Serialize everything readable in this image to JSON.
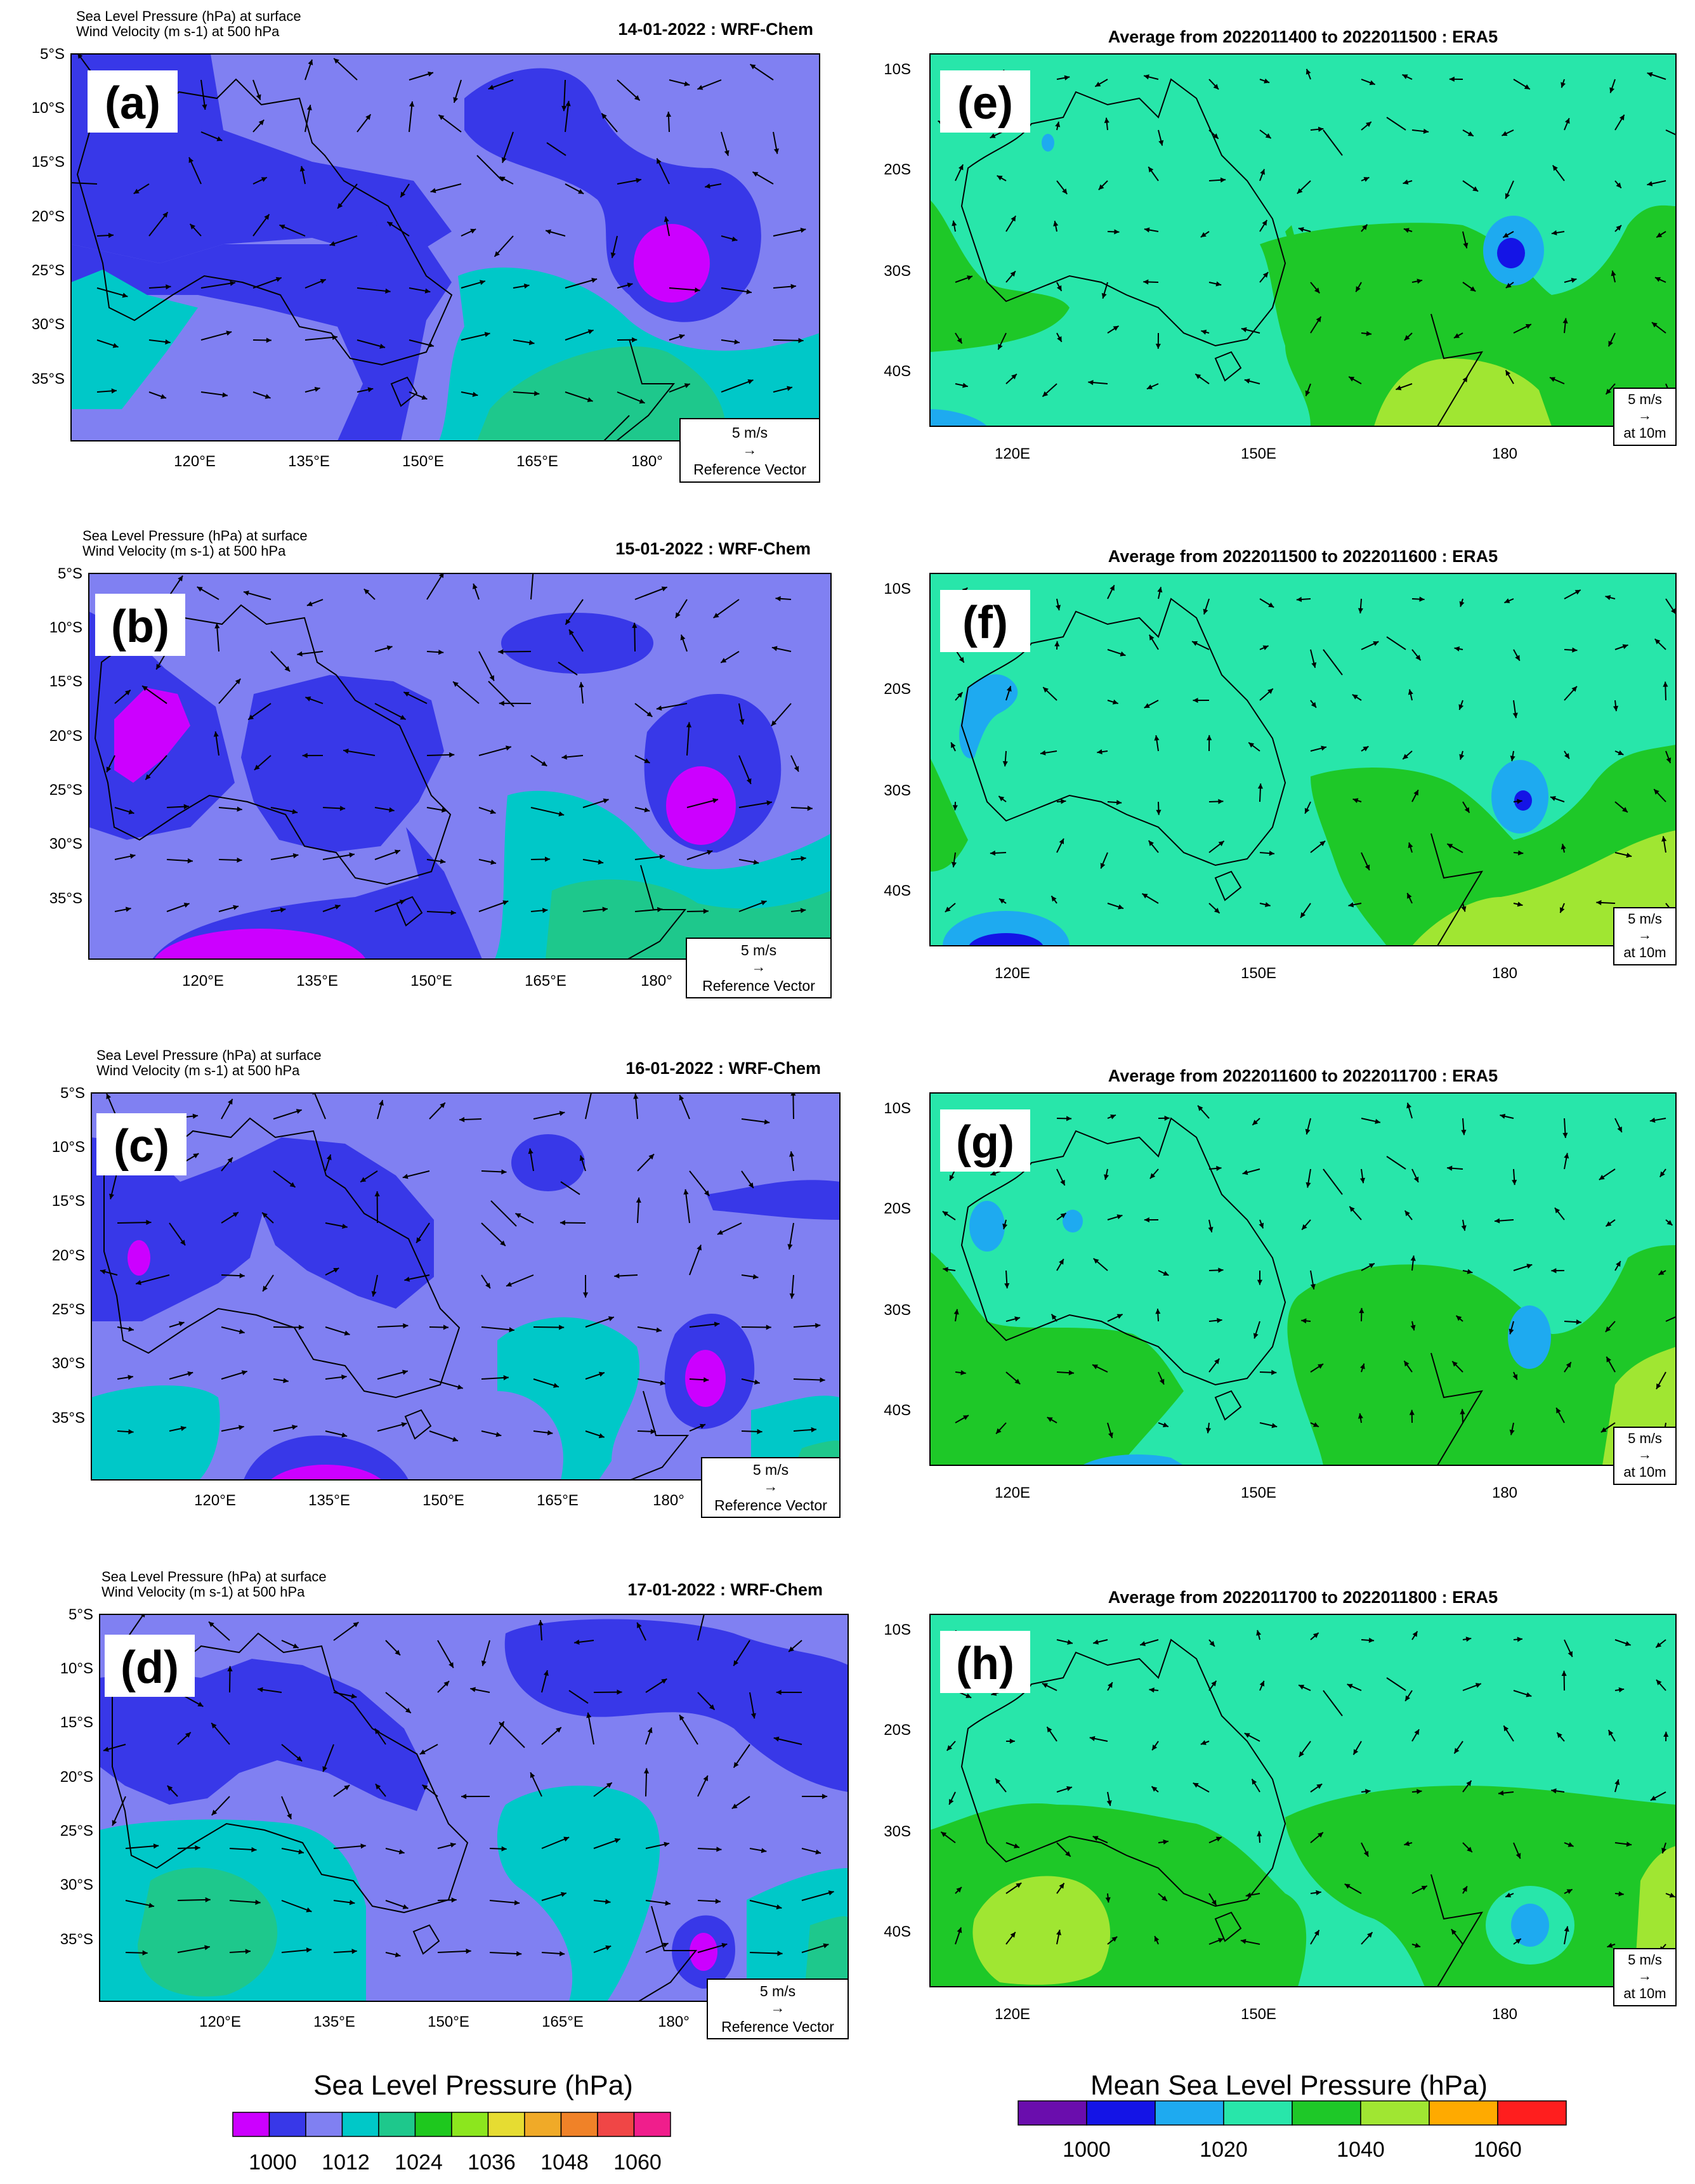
{
  "wrf_panels": [
    {
      "letter": "(a)",
      "header_line1": "Sea Level Pressure   (hPa)      at   surface",
      "header_line2": "Wind Velocity   (m s-1)      at   500 hPa",
      "date_title": "14-01-2022 : WRF-Chem"
    },
    {
      "letter": "(b)",
      "header_line1": "Sea Level Pressure   (hPa)      at   surface",
      "header_line2": "Wind Velocity   (m s-1)      at   500 hPa",
      "date_title": "15-01-2022 : WRF-Chem"
    },
    {
      "letter": "(c)",
      "header_line1": "Sea Level Pressure   (hPa)      at   surface",
      "header_line2": "Wind Velocity   (m s-1)      at   500 hPa",
      "date_title": "16-01-2022 : WRF-Chem"
    },
    {
      "letter": "(d)",
      "header_line1": "Sea Level Pressure   (hPa)      at   surface",
      "header_line2": "Wind Velocity   (m s-1)      at   500 hPa",
      "date_title": "17-01-2022 : WRF-Chem"
    }
  ],
  "era_panels": [
    {
      "letter": "(e)",
      "title": "Average from 2022011400 to 2022011500 : ERA5"
    },
    {
      "letter": "(f)",
      "title": "Average from 2022011500 to 2022011600 : ERA5"
    },
    {
      "letter": "(g)",
      "title": "Average from 2022011600 to 2022011700 : ERA5"
    },
    {
      "letter": "(h)",
      "title": "Average from 2022011700 to 2022011800 : ERA5"
    }
  ],
  "wrf_axes": {
    "lat_ticks": [
      "5°S",
      "10°S",
      "15°S",
      "20°S",
      "25°S",
      "30°S",
      "35°S"
    ],
    "lon_ticks": [
      "120°E",
      "135°E",
      "150°E",
      "165°E",
      "180°"
    ],
    "reference": {
      "speed": "5 m/s",
      "arrow": "→",
      "label": "Reference Vector"
    }
  },
  "era_axes": {
    "lat_ticks": [
      "10S",
      "20S",
      "30S",
      "40S"
    ],
    "lon_ticks": [
      "120E",
      "150E",
      "180"
    ],
    "reference": {
      "speed": "5 m/s",
      "arrow": "→",
      "label": "at 10m"
    }
  },
  "legend_wrf": {
    "title": "Sea Level Pressure  (hPa)",
    "colors": [
      "#cc00ff",
      "#3838e8",
      "#8080f2",
      "#00c8c8",
      "#1ec88c",
      "#1ec81e",
      "#8ce61e",
      "#e6dc32",
      "#f0aa28",
      "#f08228",
      "#f04646",
      "#f01e8c"
    ],
    "labels": [
      "1000",
      "1012",
      "1024",
      "1036",
      "1048",
      "1060"
    ]
  },
  "legend_era": {
    "title": "Mean Sea Level Pressure (hPa)",
    "colors": [
      "#6a0dad",
      "#1414e6",
      "#1eaaf0",
      "#28e6aa",
      "#1ec828",
      "#a0e632",
      "#ffaa00",
      "#ff1e1e"
    ],
    "labels": [
      "1000",
      "1020",
      "1040",
      "1060"
    ]
  },
  "colors": {
    "wrf_bg": "#8080f2",
    "wrf_low": "#3838e8",
    "wrf_min": "#cc00ff",
    "wrf_teal": "#00c8c8",
    "wrf_green": "#1ec88c",
    "era_bg": "#28e6aa",
    "era_green": "#1ec828",
    "era_lime": "#a0e632",
    "era_blue": "#1eaaf0",
    "era_deep": "#1414e6",
    "coast": "#000000"
  }
}
